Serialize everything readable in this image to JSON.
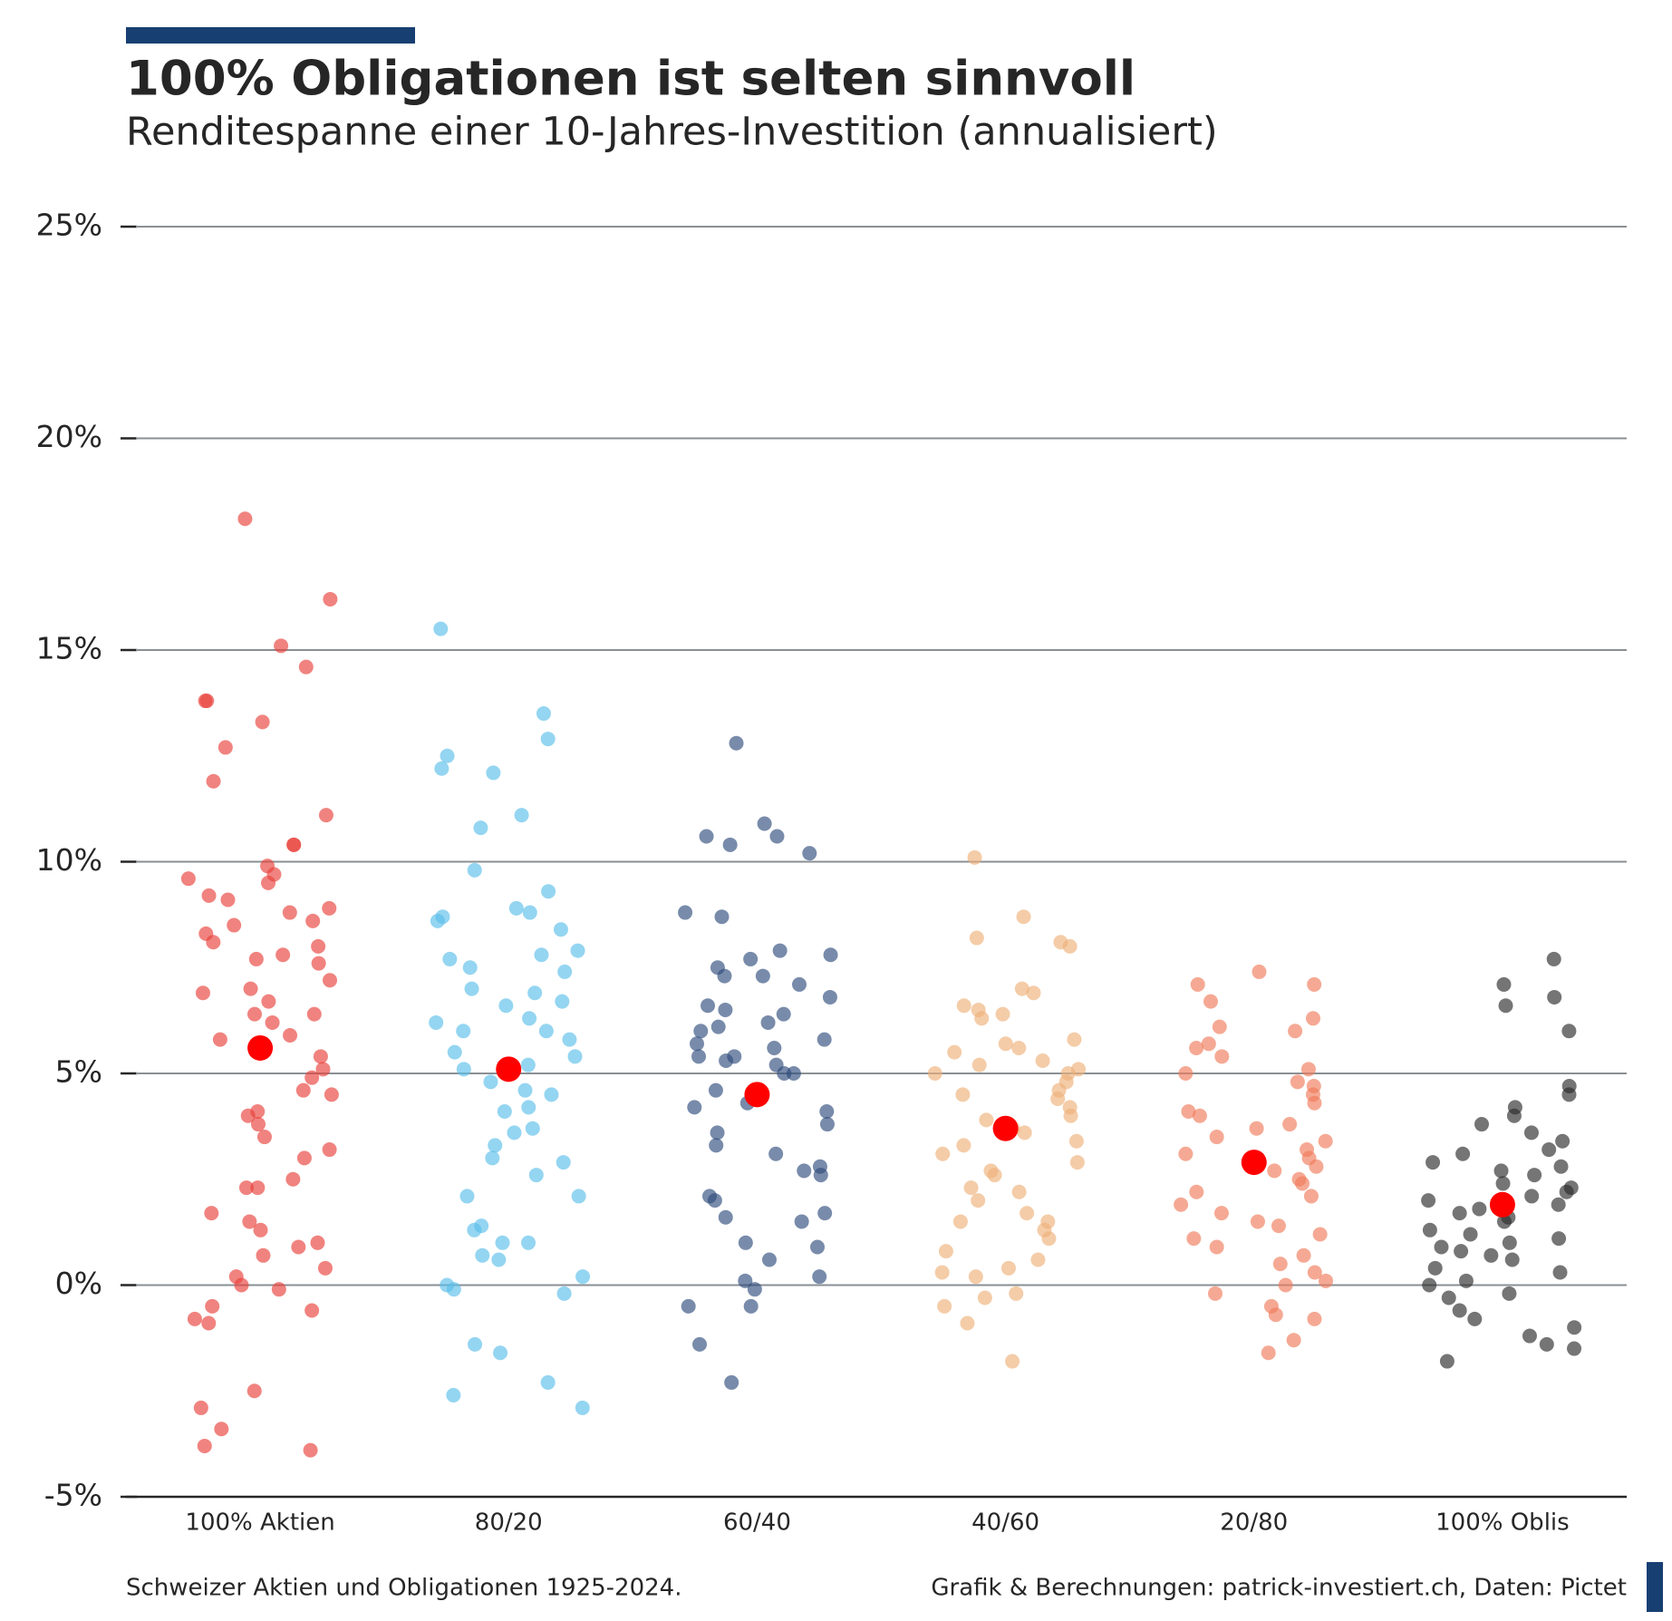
{
  "chart_data": {
    "type": "strip",
    "title": "100% Obligationen ist selten sinnvoll",
    "subtitle": "Renditespanne einer 10-Jahres-Investition (annualisiert)",
    "source": "Schweizer Aktien und Obligationen 1925-2024.",
    "credit": "Grafik & Berechnungen: patrick-investiert.ch, Daten: Pictet",
    "categories": [
      "100% Aktien",
      "80/20",
      "60/40",
      "40/60",
      "20/80",
      "100% Oblis"
    ],
    "colors": [
      "#e8403a",
      "#5bbfe9",
      "#2f4d7c",
      "#eeb07a",
      "#ef7b5b",
      "#2b2b2b"
    ],
    "values": [
      [
        18.1,
        16.2,
        15.1,
        14.6,
        13.8,
        13.8,
        13.3,
        12.7,
        11.9,
        11.1,
        10.4,
        10.4,
        9.9,
        9.7,
        9.6,
        9.5,
        9.2,
        9.1,
        8.9,
        8.8,
        8.6,
        8.5,
        8.3,
        8.1,
        8.0,
        7.8,
        7.7,
        7.6,
        7.2,
        7.0,
        6.9,
        6.7,
        6.4,
        6.4,
        6.2,
        5.9,
        5.8,
        5.4,
        5.1,
        4.9,
        4.6,
        4.5,
        4.1,
        4.0,
        3.8,
        3.5,
        3.2,
        3.0,
        2.5,
        2.3,
        2.3,
        1.7,
        1.5,
        1.3,
        1.0,
        0.9,
        0.7,
        0.4,
        0.2,
        0.0,
        -0.1,
        -0.5,
        -0.6,
        -0.8,
        -0.9,
        -2.5,
        -2.9,
        -3.4,
        -3.8,
        -3.9
      ],
      [
        15.5,
        13.5,
        12.9,
        12.5,
        12.2,
        12.1,
        11.1,
        10.8,
        9.8,
        9.3,
        8.9,
        8.8,
        8.7,
        8.6,
        8.4,
        7.9,
        7.8,
        7.7,
        7.5,
        7.4,
        7.0,
        6.9,
        6.7,
        6.6,
        6.3,
        6.2,
        6.0,
        6.0,
        5.8,
        5.5,
        5.4,
        5.2,
        5.1,
        4.8,
        4.6,
        4.5,
        4.2,
        4.1,
        3.7,
        3.6,
        3.3,
        3.0,
        2.9,
        2.6,
        2.1,
        2.1,
        1.4,
        1.3,
        1.0,
        1.0,
        0.7,
        0.6,
        0.2,
        0.0,
        -0.1,
        -0.2,
        -1.4,
        -1.6,
        -2.3,
        -2.6,
        -2.9
      ],
      [
        12.8,
        10.9,
        10.6,
        10.6,
        10.4,
        10.2,
        8.8,
        8.7,
        7.9,
        7.8,
        7.7,
        7.5,
        7.3,
        7.3,
        7.1,
        6.8,
        6.6,
        6.5,
        6.4,
        6.2,
        6.1,
        6.0,
        5.8,
        5.7,
        5.6,
        5.4,
        5.4,
        5.3,
        5.2,
        5.0,
        5.0,
        4.6,
        4.3,
        4.2,
        4.1,
        3.8,
        3.6,
        3.3,
        3.1,
        2.8,
        2.7,
        2.6,
        2.1,
        2.0,
        1.7,
        1.6,
        1.5,
        1.0,
        0.9,
        0.6,
        0.2,
        0.1,
        -0.1,
        -0.5,
        -0.5,
        -1.4,
        -2.3
      ],
      [
        10.1,
        8.7,
        8.2,
        8.1,
        8.0,
        7.0,
        6.9,
        6.6,
        6.5,
        6.4,
        6.3,
        5.8,
        5.7,
        5.6,
        5.5,
        5.3,
        5.2,
        5.1,
        5.0,
        5.0,
        4.8,
        4.6,
        4.5,
        4.4,
        4.2,
        4.0,
        3.9,
        3.7,
        3.6,
        3.4,
        3.3,
        3.1,
        2.9,
        2.7,
        2.6,
        2.3,
        2.2,
        2.0,
        1.7,
        1.5,
        1.5,
        1.3,
        1.1,
        0.8,
        0.6,
        0.4,
        0.3,
        0.2,
        -0.2,
        -0.3,
        -0.5,
        -0.9,
        -1.8
      ],
      [
        7.4,
        7.1,
        7.1,
        6.7,
        6.3,
        6.1,
        6.0,
        5.7,
        5.6,
        5.4,
        5.1,
        5.0,
        4.8,
        4.7,
        4.5,
        4.3,
        4.1,
        4.0,
        3.8,
        3.7,
        3.5,
        3.4,
        3.2,
        3.1,
        3.0,
        2.8,
        2.7,
        2.5,
        2.4,
        2.2,
        2.1,
        1.9,
        1.7,
        1.5,
        1.4,
        1.2,
        1.1,
        0.9,
        0.7,
        0.5,
        0.3,
        0.1,
        0.0,
        -0.2,
        -0.5,
        -0.7,
        -0.8,
        -1.3,
        -1.6
      ],
      [
        7.7,
        7.1,
        6.8,
        6.6,
        6.0,
        4.7,
        4.5,
        4.2,
        4.0,
        3.8,
        3.6,
        3.4,
        3.2,
        3.1,
        2.9,
        2.8,
        2.7,
        2.6,
        2.4,
        2.3,
        2.2,
        2.1,
        2.0,
        1.9,
        1.8,
        1.7,
        1.6,
        1.5,
        1.3,
        1.2,
        1.1,
        1.0,
        0.9,
        0.8,
        0.7,
        0.6,
        0.4,
        0.3,
        0.1,
        0.0,
        -0.2,
        -0.3,
        -0.6,
        -0.8,
        -1.0,
        -1.2,
        -1.4,
        -1.5,
        -1.8
      ]
    ],
    "means": [
      5.6,
      5.1,
      4.5,
      3.7,
      2.9,
      1.9
    ],
    "mean_color": "#ff0000",
    "ylim": [
      -5,
      25
    ],
    "yticks": [
      {
        "value": -5,
        "label": "-5%"
      },
      {
        "value": 0,
        "label": "0%"
      },
      {
        "value": 5,
        "label": "5%"
      },
      {
        "value": 10,
        "label": "10%"
      },
      {
        "value": 15,
        "label": "15%"
      },
      {
        "value": 20,
        "label": "20%"
      },
      {
        "value": 25,
        "label": "25%"
      }
    ],
    "grid": true
  }
}
